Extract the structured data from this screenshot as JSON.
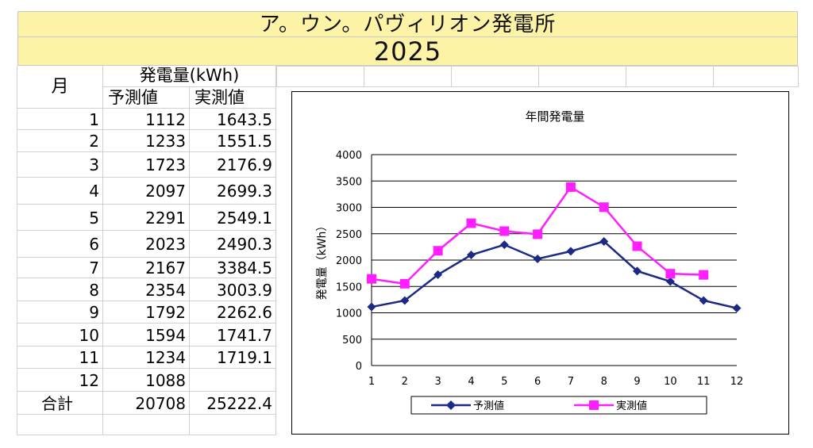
{
  "header": {
    "title": "ア。ウン。パヴィリオン発電所",
    "year": "2025"
  },
  "table": {
    "month_header": "月",
    "group_header": "発電量(kWh)",
    "col_forecast": "予測値",
    "col_actual": "実測値",
    "rows": [
      {
        "month": "1",
        "forecast": "1112",
        "actual": "1643.5"
      },
      {
        "month": "2",
        "forecast": "1233",
        "actual": "1551.5"
      },
      {
        "month": "3",
        "forecast": "1723",
        "actual": "2176.9"
      },
      {
        "month": "4",
        "forecast": "2097",
        "actual": "2699.3"
      },
      {
        "month": "5",
        "forecast": "2291",
        "actual": "2549.1"
      },
      {
        "month": "6",
        "forecast": "2023",
        "actual": "2490.3"
      },
      {
        "month": "7",
        "forecast": "2167",
        "actual": "3384.5"
      },
      {
        "month": "8",
        "forecast": "2354",
        "actual": "3003.9"
      },
      {
        "month": "9",
        "forecast": "1792",
        "actual": "2262.6"
      },
      {
        "month": "10",
        "forecast": "1594",
        "actual": "1741.7"
      },
      {
        "month": "11",
        "forecast": "1234",
        "actual": "1719.1"
      },
      {
        "month": "12",
        "forecast": "1088",
        "actual": ""
      }
    ],
    "total_label": "合計",
    "total_forecast": "20708",
    "total_actual": "25222.4"
  },
  "chart_data": {
    "type": "line",
    "title": "年間発電量",
    "xlabel": "",
    "ylabel": "発電量（kWh）",
    "ylim": [
      0,
      4000
    ],
    "yticks": [
      0,
      500,
      1000,
      1500,
      2000,
      2500,
      3000,
      3500,
      4000
    ],
    "x": [
      1,
      2,
      3,
      4,
      5,
      6,
      7,
      8,
      9,
      10,
      11,
      12
    ],
    "grid": "horizontal",
    "legend": "bottom",
    "series": [
      {
        "name": "予測値",
        "color": "#1c2a86",
        "marker": "diamond",
        "values": [
          1112,
          1233,
          1723,
          2097,
          2291,
          2023,
          2167,
          2354,
          1792,
          1594,
          1234,
          1088
        ]
      },
      {
        "name": "実測値",
        "color": "#ff1eff",
        "marker": "square",
        "values": [
          1643.5,
          1551.5,
          2176.9,
          2699.3,
          2549.1,
          2490.3,
          3384.5,
          3003.9,
          2262.6,
          1741.7,
          1719.1,
          null
        ]
      }
    ]
  }
}
